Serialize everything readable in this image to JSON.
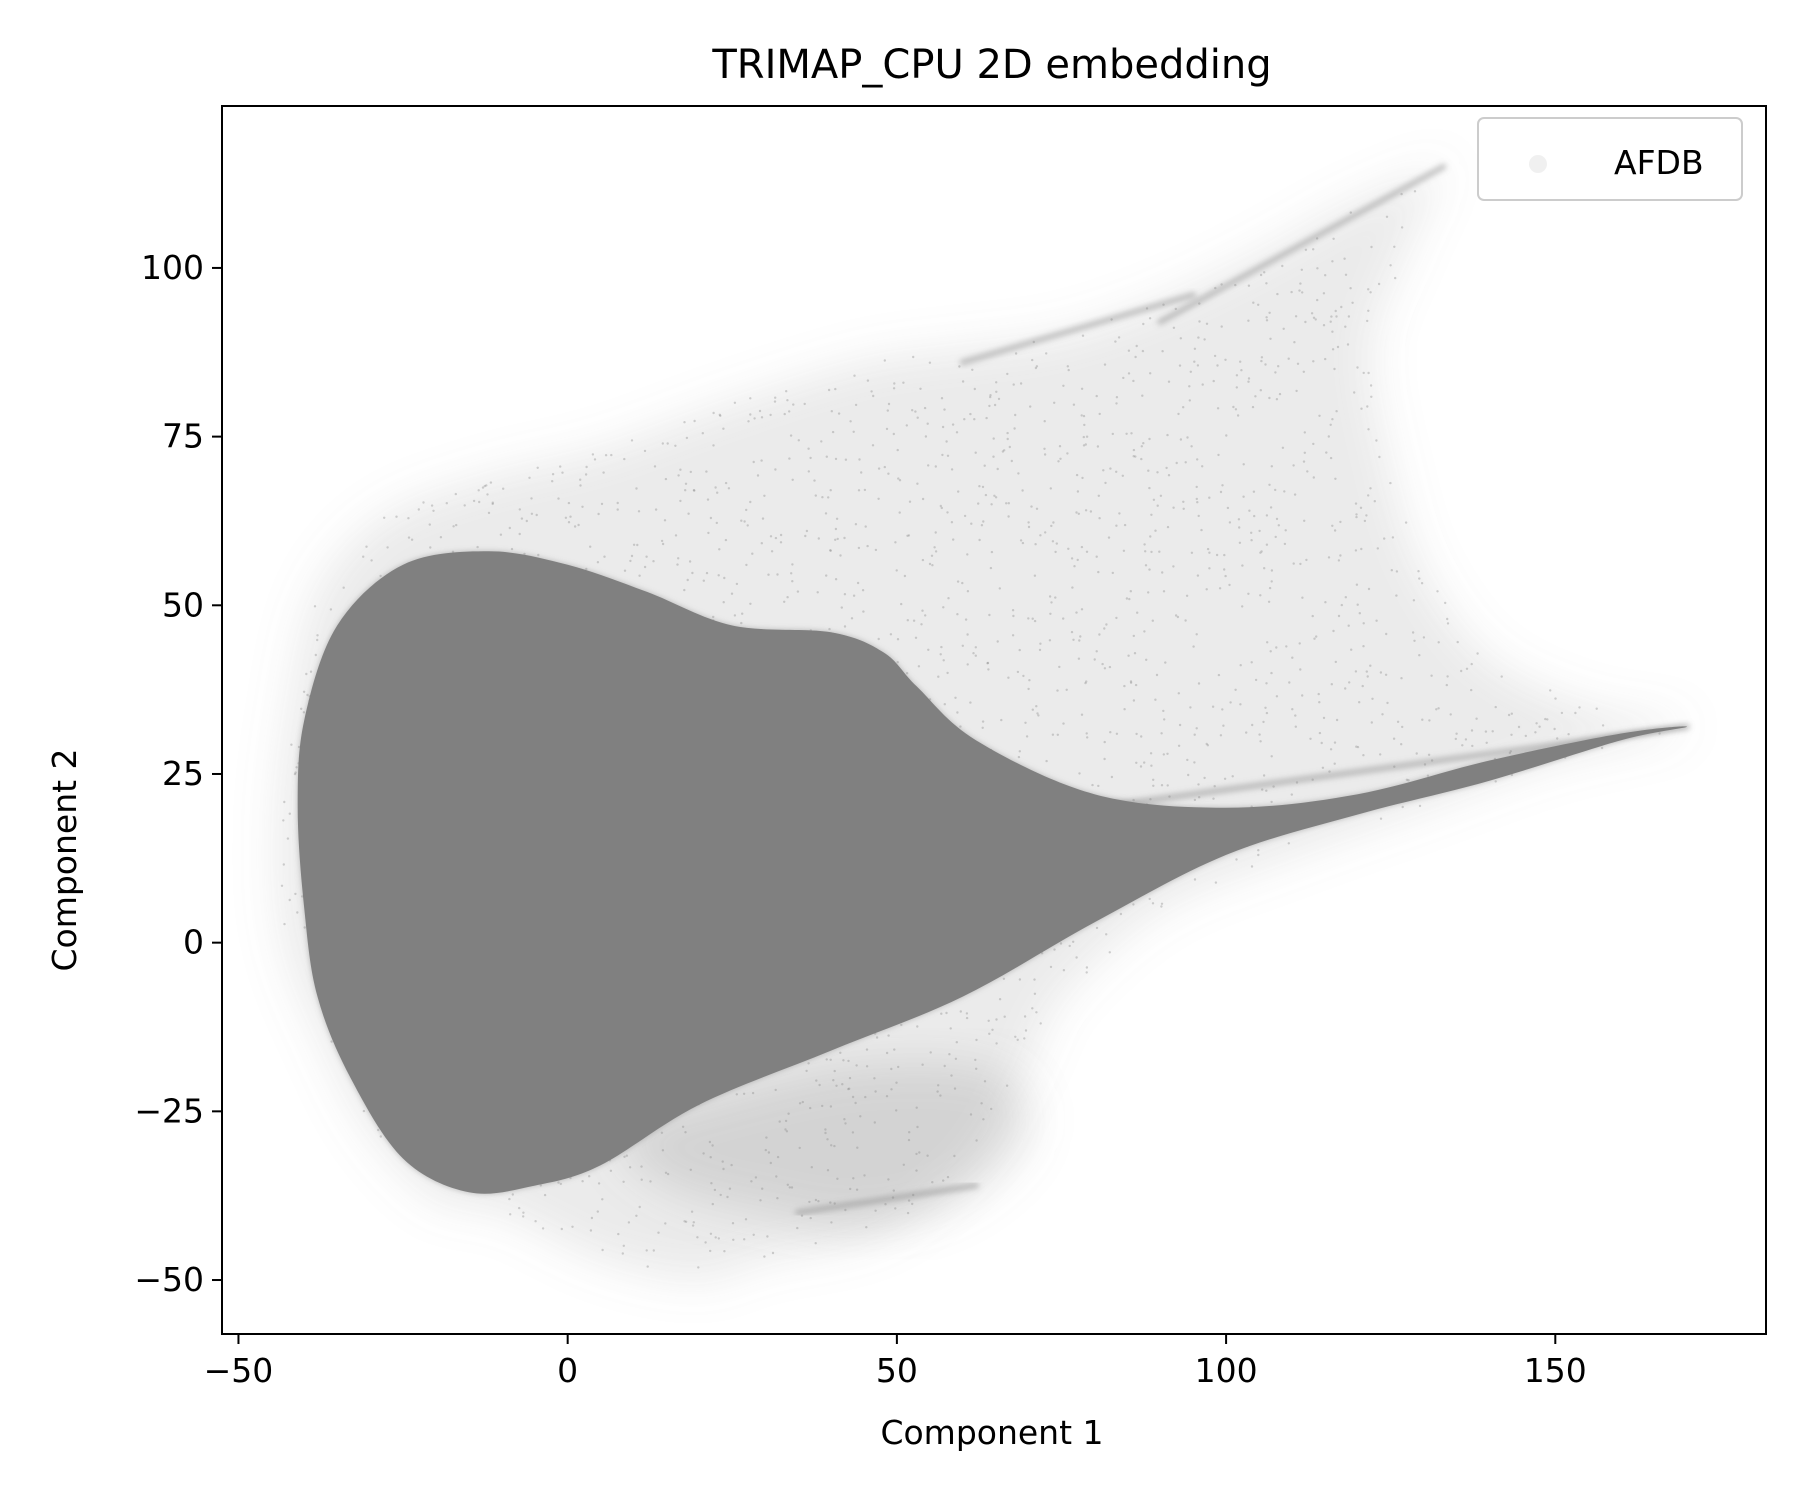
{
  "chart_data": {
    "type": "scatter",
    "title": "TRIMAP_CPU 2D embedding",
    "xlabel": "Component 1",
    "ylabel": "Component 2",
    "xlim": [
      -52.5,
      182.0
    ],
    "ylim": [
      -58.0,
      124.0
    ],
    "xticks": [
      -50,
      0,
      50,
      100,
      150
    ],
    "yticks": [
      -50,
      -25,
      0,
      25,
      50,
      75,
      100
    ],
    "xtick_labels": [
      "−50",
      "0",
      "50",
      "100",
      "150"
    ],
    "ytick_labels": [
      "−50",
      "−25",
      "0",
      "25",
      "50",
      "75",
      "100"
    ],
    "grid": false,
    "legend": {
      "placement": "top-right",
      "entries": [
        "AFDB"
      ]
    },
    "series": [
      {
        "name": "AFDB",
        "color": "#808080",
        "dense_core": [
          [
            -40,
            33
          ],
          [
            -35,
            47
          ],
          [
            -25,
            56
          ],
          [
            -12,
            58
          ],
          [
            0,
            56
          ],
          [
            12,
            52
          ],
          [
            25,
            47
          ],
          [
            40,
            46
          ],
          [
            48,
            43
          ],
          [
            53,
            38
          ],
          [
            62,
            30
          ],
          [
            80,
            22
          ],
          [
            100,
            20
          ],
          [
            120,
            22
          ],
          [
            140,
            27
          ],
          [
            160,
            31
          ],
          [
            170,
            32
          ],
          [
            160,
            30
          ],
          [
            140,
            24
          ],
          [
            120,
            19
          ],
          [
            100,
            13
          ],
          [
            80,
            3
          ],
          [
            60,
            -8
          ],
          [
            40,
            -16
          ],
          [
            20,
            -24
          ],
          [
            5,
            -33
          ],
          [
            -5,
            -36
          ],
          [
            -15,
            -37
          ],
          [
            -25,
            -32
          ],
          [
            -33,
            -20
          ],
          [
            -38,
            -8
          ],
          [
            -40,
            5
          ],
          [
            -41,
            20
          ]
        ],
        "sparse_halo": [
          [
            -42,
            36
          ],
          [
            -38,
            52
          ],
          [
            -28,
            63
          ],
          [
            -12,
            69
          ],
          [
            5,
            73
          ],
          [
            25,
            80
          ],
          [
            45,
            86
          ],
          [
            60,
            88
          ],
          [
            75,
            90
          ],
          [
            90,
            95
          ],
          [
            105,
            102
          ],
          [
            118,
            109
          ],
          [
            130,
            114
          ],
          [
            133,
            115
          ],
          [
            127,
            102
          ],
          [
            122,
            88
          ],
          [
            125,
            70
          ],
          [
            130,
            55
          ],
          [
            140,
            42
          ],
          [
            155,
            35
          ],
          [
            170,
            32
          ],
          [
            150,
            27
          ],
          [
            130,
            20
          ],
          [
            110,
            13
          ],
          [
            90,
            5
          ],
          [
            75,
            -8
          ],
          [
            70,
            -18
          ],
          [
            62,
            -32
          ],
          [
            48,
            -43
          ],
          [
            30,
            -47
          ],
          [
            20,
            -50
          ],
          [
            5,
            -47
          ],
          [
            -10,
            -40
          ],
          [
            -20,
            -38
          ],
          [
            -30,
            -28
          ],
          [
            -37,
            -15
          ],
          [
            -43,
            0
          ],
          [
            -44,
            18
          ]
        ],
        "lower_lobe": [
          [
            8,
            -28
          ],
          [
            25,
            -22
          ],
          [
            45,
            -18
          ],
          [
            65,
            -19
          ],
          [
            70,
            -28
          ],
          [
            60,
            -38
          ],
          [
            45,
            -42
          ],
          [
            30,
            -40
          ],
          [
            15,
            -36
          ]
        ],
        "streaks": [
          {
            "from": [
              90,
              92
            ],
            "to": [
              133,
              115
            ]
          },
          {
            "from": [
              60,
              86
            ],
            "to": [
              95,
              96
            ]
          },
          {
            "from": [
              80,
              20
            ],
            "to": [
              170,
              32
            ]
          },
          {
            "from": [
              35,
              -40
            ],
            "to": [
              62,
              -36
            ]
          }
        ]
      }
    ]
  }
}
